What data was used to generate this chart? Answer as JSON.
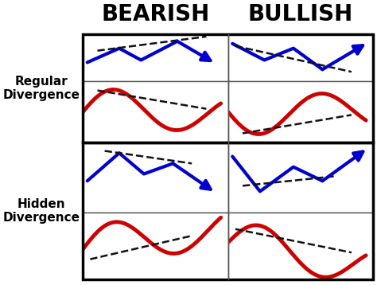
{
  "title_bearish": "BEARISH",
  "title_bullish": "BULLISH",
  "label_regular": "Regular\nDivergence",
  "label_hidden": "Hidden\nDivergence",
  "bg_color": "#ffffff",
  "border_color": "#555555",
  "blue": "#0000cc",
  "red": "#cc0000",
  "dashed": "#111111",
  "title_fontsize": 20,
  "label_fontsize": 11,
  "lw_main": 3.0,
  "lw_dash": 1.8,
  "arrow_scale": 20
}
